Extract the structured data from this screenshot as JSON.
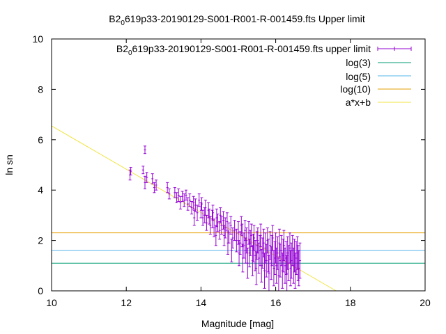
{
  "chart_data": {
    "type": "scatter",
    "title_parts": [
      "B2",
      "0",
      "619p33-20190129-S001-R001-R-001459.fts Upper limit"
    ],
    "xlabel": "Magnitude [mag]",
    "ylabel": "ln sn",
    "xlim": [
      10,
      20
    ],
    "ylim": [
      0,
      10
    ],
    "x_ticks": [
      "10",
      "12",
      "14",
      "16",
      "18",
      "20"
    ],
    "y_ticks": [
      "0",
      "2",
      "4",
      "6",
      "8",
      "10"
    ],
    "legend_position": "top-right",
    "legend": [
      {
        "key": "data",
        "parts": [
          "B2",
          "0",
          "619p33-20190129-S001-R001-R-001459.fts upper limit"
        ],
        "color": "#9400d3"
      },
      {
        "key": "log3",
        "label": "log(3)",
        "color": "#009e73"
      },
      {
        "key": "log5",
        "label": "log(5)",
        "color": "#56b4e9"
      },
      {
        "key": "log10",
        "label": "log(10)",
        "color": "#e69f00"
      },
      {
        "key": "fit",
        "label": "a*x+b",
        "color": "#f0e442"
      }
    ],
    "hlines": [
      {
        "name": "log(3)",
        "y": 1.0986,
        "color": "#009e73"
      },
      {
        "name": "log(5)",
        "y": 1.6094,
        "color": "#56b4e9"
      },
      {
        "name": "log(10)",
        "y": 2.3026,
        "color": "#e69f00"
      }
    ],
    "fit_line": {
      "name": "a*x+b",
      "slope": -0.86,
      "intercept": 15.15,
      "color": "#f0e442"
    },
    "series": [
      {
        "name": "B2 0 619p33-20190129-S001-R001-R-001459.fts upper limit",
        "color": "#9400d3",
        "points": [
          [
            12.1,
            4.6,
            0.2
          ],
          [
            12.12,
            4.75,
            0.15
          ],
          [
            12.45,
            4.8,
            0.15
          ],
          [
            12.5,
            5.6,
            0.15
          ],
          [
            12.5,
            4.3,
            0.25
          ],
          [
            12.55,
            4.5,
            0.2
          ],
          [
            12.7,
            4.45,
            0.2
          ],
          [
            12.75,
            4.1,
            0.2
          ],
          [
            12.8,
            4.2,
            0.2
          ],
          [
            13.1,
            4.1,
            0.2
          ],
          [
            13.15,
            3.85,
            0.2
          ],
          [
            13.3,
            3.9,
            0.2
          ],
          [
            13.35,
            3.7,
            0.2
          ],
          [
            13.4,
            3.8,
            0.25
          ],
          [
            13.45,
            3.5,
            0.25
          ],
          [
            13.5,
            3.75,
            0.2
          ],
          [
            13.55,
            3.6,
            0.25
          ],
          [
            13.6,
            3.8,
            0.2
          ],
          [
            13.65,
            3.45,
            0.25
          ],
          [
            13.7,
            3.6,
            0.25
          ],
          [
            13.75,
            3.3,
            0.25
          ],
          [
            13.8,
            3.5,
            0.25
          ],
          [
            13.82,
            2.9,
            0.3
          ],
          [
            13.85,
            3.4,
            0.25
          ],
          [
            13.9,
            3.1,
            0.3
          ],
          [
            13.95,
            3.6,
            0.25
          ],
          [
            14.0,
            3.2,
            0.3
          ],
          [
            14.02,
            3.45,
            0.25
          ],
          [
            14.05,
            2.9,
            0.3
          ],
          [
            14.1,
            3.0,
            0.3
          ],
          [
            14.12,
            3.3,
            0.3
          ],
          [
            14.15,
            2.7,
            0.3
          ],
          [
            14.2,
            3.2,
            0.3
          ],
          [
            14.22,
            2.95,
            0.3
          ],
          [
            14.25,
            2.6,
            0.35
          ],
          [
            14.3,
            2.85,
            0.35
          ],
          [
            14.32,
            3.1,
            0.3
          ],
          [
            14.35,
            2.5,
            0.35
          ],
          [
            14.4,
            2.2,
            0.4
          ],
          [
            14.42,
            2.9,
            0.35
          ],
          [
            14.45,
            2.7,
            0.35
          ],
          [
            14.5,
            2.4,
            0.35
          ],
          [
            14.52,
            3.0,
            0.3
          ],
          [
            14.55,
            2.6,
            0.35
          ],
          [
            14.6,
            2.8,
            0.35
          ],
          [
            14.62,
            2.2,
            0.4
          ],
          [
            14.65,
            2.5,
            0.4
          ],
          [
            14.7,
            2.75,
            0.35
          ],
          [
            14.72,
            1.9,
            0.45
          ],
          [
            14.75,
            2.3,
            0.4
          ],
          [
            14.8,
            2.6,
            0.35
          ],
          [
            14.82,
            1.6,
            0.45
          ],
          [
            14.85,
            2.1,
            0.4
          ],
          [
            14.9,
            2.4,
            0.4
          ],
          [
            14.95,
            2.0,
            0.45
          ],
          [
            15.0,
            2.3,
            0.45
          ],
          [
            15.02,
            1.5,
            0.5
          ],
          [
            15.05,
            1.9,
            0.45
          ],
          [
            15.08,
            2.6,
            0.35
          ],
          [
            15.1,
            2.2,
            0.45
          ],
          [
            15.12,
            1.3,
            0.55
          ],
          [
            15.15,
            1.8,
            0.5
          ],
          [
            15.18,
            2.4,
            0.4
          ],
          [
            15.2,
            1.6,
            0.5
          ],
          [
            15.22,
            2.0,
            0.5
          ],
          [
            15.25,
            1.1,
            0.6
          ],
          [
            15.28,
            2.3,
            0.45
          ],
          [
            15.3,
            1.5,
            0.55
          ],
          [
            15.32,
            1.9,
            0.5
          ],
          [
            15.35,
            2.2,
            0.45
          ],
          [
            15.38,
            1.2,
            0.6
          ],
          [
            15.4,
            1.7,
            0.55
          ],
          [
            15.42,
            2.1,
            0.5
          ],
          [
            15.45,
            1.4,
            0.6
          ],
          [
            15.48,
            0.9,
            0.65
          ],
          [
            15.5,
            1.8,
            0.55
          ],
          [
            15.52,
            2.0,
            0.5
          ],
          [
            15.55,
            1.3,
            0.6
          ],
          [
            15.58,
            1.6,
            0.6
          ],
          [
            15.6,
            2.2,
            0.45
          ],
          [
            15.62,
            1.0,
            0.65
          ],
          [
            15.65,
            1.5,
            0.6
          ],
          [
            15.68,
            1.9,
            0.55
          ],
          [
            15.7,
            0.8,
            0.7
          ],
          [
            15.72,
            1.7,
            0.6
          ],
          [
            15.75,
            1.2,
            0.65
          ],
          [
            15.78,
            2.0,
            0.5
          ],
          [
            15.8,
            1.4,
            0.65
          ],
          [
            15.82,
            0.7,
            0.7
          ],
          [
            15.85,
            1.8,
            0.55
          ],
          [
            15.88,
            1.1,
            0.65
          ],
          [
            15.9,
            1.6,
            0.6
          ],
          [
            15.92,
            2.1,
            0.5
          ],
          [
            15.95,
            0.9,
            0.7
          ],
          [
            15.98,
            1.3,
            0.65
          ],
          [
            16.0,
            1.7,
            0.6
          ],
          [
            16.02,
            1.0,
            0.7
          ],
          [
            16.05,
            1.5,
            0.65
          ],
          [
            16.08,
            0.6,
            0.7
          ],
          [
            16.1,
            1.9,
            0.55
          ],
          [
            16.12,
            1.2,
            0.65
          ],
          [
            16.15,
            1.6,
            0.6
          ],
          [
            16.18,
            0.8,
            0.7
          ],
          [
            16.2,
            1.4,
            0.65
          ],
          [
            16.22,
            1.8,
            0.6
          ],
          [
            16.25,
            1.0,
            0.7
          ],
          [
            16.28,
            1.3,
            0.65
          ],
          [
            16.3,
            0.7,
            0.7
          ],
          [
            16.32,
            1.5,
            0.65
          ],
          [
            16.35,
            1.1,
            0.7
          ],
          [
            16.38,
            1.7,
            0.6
          ],
          [
            16.4,
            0.9,
            0.7
          ],
          [
            16.42,
            1.2,
            0.7
          ],
          [
            16.45,
            1.6,
            0.6
          ],
          [
            16.48,
            1.0,
            0.7
          ],
          [
            16.5,
            1.4,
            0.65
          ],
          [
            16.52,
            0.8,
            0.7
          ],
          [
            16.55,
            1.3,
            0.65
          ],
          [
            16.58,
            1.5,
            0.65
          ],
          [
            16.6,
            1.1,
            0.7
          ],
          [
            16.62,
            0.9,
            0.7
          ],
          [
            16.65,
            1.2,
            0.7
          ]
        ]
      }
    ]
  }
}
